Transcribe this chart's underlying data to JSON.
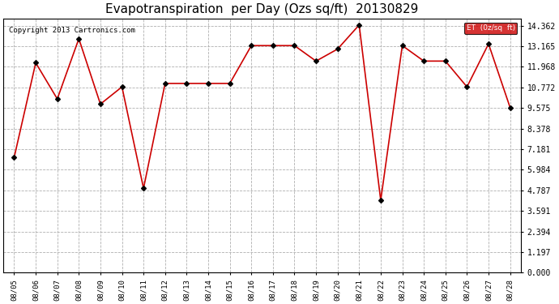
{
  "title": "Evapotranspiration  per Day (Ozs sq/ft)  20130829",
  "copyright": "Copyright 2013 Cartronics.com",
  "legend_label": "ET  (0z/sq  ft)",
  "x_labels": [
    "08/05",
    "08/06",
    "08/07",
    "08/08",
    "08/09",
    "08/10",
    "08/11",
    "08/12",
    "08/13",
    "08/14",
    "08/15",
    "08/16",
    "08/17",
    "08/18",
    "08/19",
    "08/20",
    "08/21",
    "08/22",
    "08/23",
    "08/24",
    "08/25",
    "08/26",
    "08/27",
    "08/28"
  ],
  "y_values": [
    6.7,
    12.2,
    10.1,
    13.6,
    9.8,
    10.8,
    4.9,
    11.0,
    11.0,
    11.0,
    11.0,
    13.2,
    13.2,
    13.2,
    12.3,
    13.0,
    14.4,
    4.2,
    13.2,
    12.3,
    12.3,
    10.8,
    13.3,
    9.6
  ],
  "yticks": [
    0.0,
    1.197,
    2.394,
    3.591,
    4.787,
    5.984,
    7.181,
    8.378,
    9.575,
    10.772,
    11.968,
    13.165,
    14.362
  ],
  "ylim": [
    0.0,
    14.762
  ],
  "line_color": "#cc0000",
  "marker_color": "#000000",
  "bg_color": "#ffffff",
  "grid_color": "#b0b0b0",
  "title_fontsize": 11,
  "legend_bg": "#cc0000",
  "legend_fg": "#ffffff"
}
